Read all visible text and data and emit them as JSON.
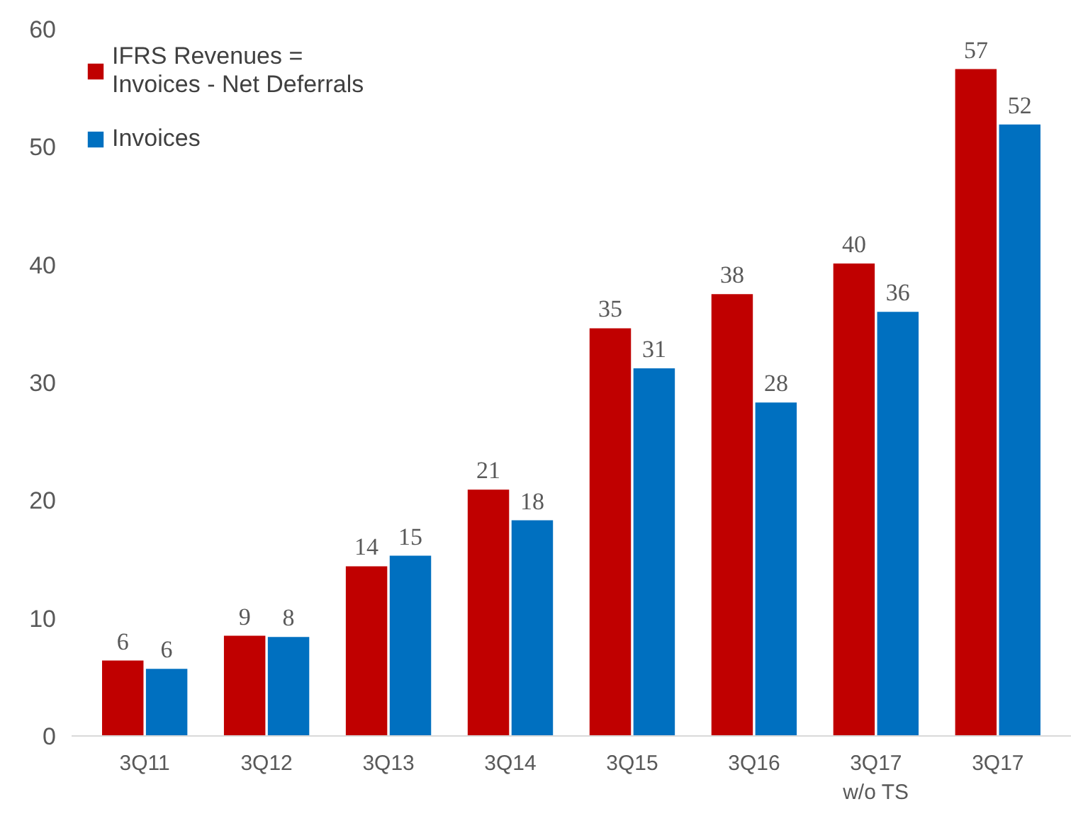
{
  "chart_data": {
    "type": "bar",
    "categories": [
      "3Q11",
      "3Q12",
      "3Q13",
      "3Q14",
      "3Q15",
      "3Q16",
      "3Q17\nw/o TS",
      "3Q17"
    ],
    "series": [
      {
        "name": "IFRS Revenues =\nInvoices - Net Deferrals",
        "color": "#c00000",
        "values": [
          6.4,
          8.5,
          14.4,
          20.9,
          34.6,
          37.5,
          40.1,
          56.6
        ],
        "value_labels": [
          "6",
          "9",
          "14",
          "21",
          "35",
          "38",
          "40",
          "57"
        ]
      },
      {
        "name": "Invoices",
        "color": "#0070c0",
        "values": [
          5.7,
          8.4,
          15.3,
          18.3,
          31.2,
          28.3,
          36.0,
          51.9
        ],
        "value_labels": [
          "6",
          "8",
          "15",
          "18",
          "31",
          "28",
          "36",
          "52"
        ]
      }
    ],
    "ylim": [
      0,
      60
    ],
    "yticks": [
      0,
      10,
      20,
      30,
      40,
      50,
      60
    ],
    "grid": false,
    "legend": "top left"
  }
}
